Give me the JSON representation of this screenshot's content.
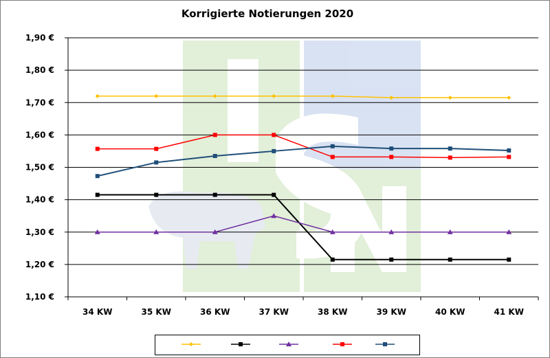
{
  "chart_data": {
    "type": "line",
    "title": "Korrigierte Notierungen 2020",
    "xlabel": "",
    "ylabel": "",
    "categories": [
      "34 KW",
      "35 KW",
      "36 KW",
      "37 KW",
      "38 KW",
      "39 KW",
      "40 KW",
      "41 KW"
    ],
    "ylim": [
      1.1,
      1.9
    ],
    "yticks": [
      "1,10 €",
      "1,20 €",
      "1,30 €",
      "1,40 €",
      "1,50 €",
      "1,60 €",
      "1,70 €",
      "1,80 €",
      "1,90 €"
    ],
    "grid": true,
    "legend": "bottom",
    "watermark": "ISN",
    "series": [
      {
        "color": "#FFC000",
        "marker": "diamond",
        "values": [
          1.72,
          1.72,
          1.72,
          1.72,
          1.72,
          1.715,
          1.715,
          1.715
        ]
      },
      {
        "color": "#000000",
        "marker": "square",
        "values": [
          1.415,
          1.415,
          1.415,
          1.415,
          1.215,
          1.215,
          1.215,
          1.215
        ]
      },
      {
        "color": "#7030A0",
        "marker": "triangle",
        "values": [
          1.3,
          1.3,
          1.3,
          1.35,
          1.3,
          1.3,
          1.3,
          1.3
        ]
      },
      {
        "color": "#FF0000",
        "marker": "square",
        "values": [
          1.557,
          1.557,
          1.6,
          1.6,
          1.532,
          1.532,
          1.53,
          1.532
        ]
      },
      {
        "color": "#1F4E79",
        "marker": "square",
        "values": [
          1.473,
          1.515,
          1.535,
          1.55,
          1.565,
          1.558,
          1.558,
          1.552
        ]
      }
    ]
  }
}
